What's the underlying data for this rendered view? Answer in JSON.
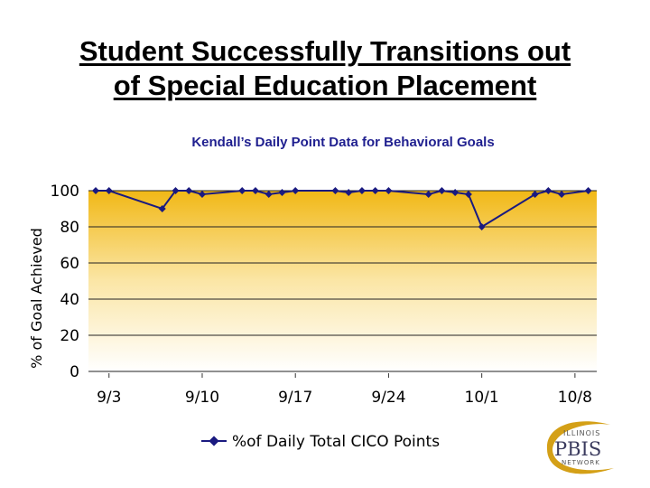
{
  "slide": {
    "title_line1": "Student Successfully Transitions out",
    "title_line2": "of Special Education Placement"
  },
  "logo": {
    "top_text": "ILLINOIS",
    "main_text": "PBIS",
    "bottom_text": "NETWORK",
    "colors": {
      "swoosh": "#d4a017",
      "text": "#3b3b5e"
    }
  },
  "chart_data": {
    "type": "line",
    "title": "Kendall’s Daily Point Data for Behavioral Goals",
    "xlabel": "",
    "ylabel": "% of Goal Achieved",
    "ylim": [
      0,
      100
    ],
    "y_ticks": [
      "0",
      "20",
      "40",
      "60",
      "80",
      "100"
    ],
    "x_tick_labels": [
      "9/3",
      "9/10",
      "9/17",
      "9/24",
      "10/1",
      "10/8"
    ],
    "x_start": "9/2",
    "grid": "horizontal",
    "background": "gradient gold (top) to white (bottom)",
    "legend_position": "bottom-center",
    "series": [
      {
        "name": "%of Daily Total CICO Points",
        "color": "#1a1a80",
        "marker": "diamond",
        "points": [
          {
            "day": 0,
            "value": 100
          },
          {
            "day": 1,
            "value": 100
          },
          {
            "day": 5,
            "value": 90
          },
          {
            "day": 6,
            "value": 100
          },
          {
            "day": 7,
            "value": 100
          },
          {
            "day": 8,
            "value": 98
          },
          {
            "day": 11,
            "value": 100
          },
          {
            "day": 12,
            "value": 100
          },
          {
            "day": 13,
            "value": 98
          },
          {
            "day": 14,
            "value": 99
          },
          {
            "day": 15,
            "value": 100
          },
          {
            "day": 18,
            "value": 100
          },
          {
            "day": 19,
            "value": 99
          },
          {
            "day": 20,
            "value": 100
          },
          {
            "day": 21,
            "value": 100
          },
          {
            "day": 22,
            "value": 100
          },
          {
            "day": 25,
            "value": 98
          },
          {
            "day": 26,
            "value": 100
          },
          {
            "day": 27,
            "value": 99
          },
          {
            "day": 28,
            "value": 98
          },
          {
            "day": 29,
            "value": 80
          },
          {
            "day": 33,
            "value": 98
          },
          {
            "day": 34,
            "value": 100
          },
          {
            "day": 35,
            "value": 98
          },
          {
            "day": 37,
            "value": 100
          }
        ]
      }
    ]
  }
}
